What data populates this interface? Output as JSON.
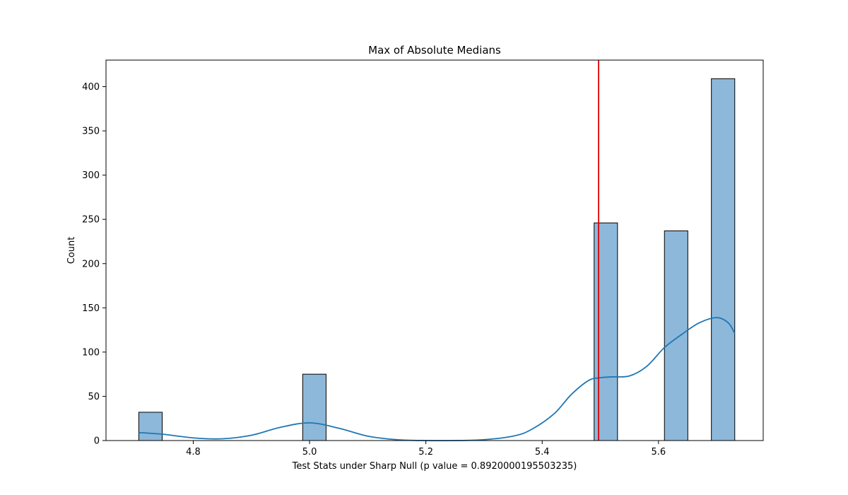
{
  "chart_data": {
    "type": "bar",
    "title": "Max of Absolute Medians",
    "xlabel": "Test Stats under Sharp Null (p value = 0.8920000195503235)",
    "ylabel": "Count",
    "xlim": [
      4.65,
      5.78
    ],
    "ylim": [
      0,
      430
    ],
    "xticks": [
      4.8,
      5.0,
      5.2,
      5.4,
      5.6,
      5.8
    ],
    "xtick_labels": [
      "4.8",
      "5.0",
      "5.2",
      "5.4",
      "5.6",
      ""
    ],
    "yticks": [
      0,
      50,
      100,
      150,
      200,
      250,
      300,
      350,
      400
    ],
    "ytick_labels": [
      "0",
      "50",
      "100",
      "150",
      "200",
      "250",
      "300",
      "350",
      "400"
    ],
    "bars": [
      {
        "x0": 4.7064,
        "x1": 4.7466,
        "value": 32
      },
      {
        "x0": 4.9882,
        "x1": 5.0284,
        "value": 75
      },
      {
        "x0": 5.4893,
        "x1": 5.5295,
        "value": 246
      },
      {
        "x0": 5.6102,
        "x1": 5.6504,
        "value": 237
      },
      {
        "x0": 5.6909,
        "x1": 5.7311,
        "value": 409
      }
    ],
    "kde": {
      "x": [
        4.7064,
        4.75,
        4.8,
        4.85,
        4.9,
        4.95,
        5.0,
        5.05,
        5.1,
        5.15,
        5.2,
        5.25,
        5.3,
        5.35,
        5.38,
        5.42,
        5.45,
        5.48,
        5.5,
        5.52,
        5.55,
        5.58,
        5.61,
        5.64,
        5.67,
        5.7,
        5.72,
        5.7311
      ],
      "y": [
        9,
        7,
        3,
        2,
        6,
        15,
        20,
        14,
        5,
        1,
        0,
        0,
        1,
        5,
        12,
        30,
        52,
        68,
        71,
        72,
        73,
        84,
        105,
        120,
        133,
        139,
        133,
        121
      ]
    },
    "vline": {
      "x": 5.497,
      "color": "#e00000"
    },
    "colors": {
      "bar_fill": "#8db8da",
      "bar_edge": "#000000",
      "kde": "#1f77b4"
    }
  }
}
